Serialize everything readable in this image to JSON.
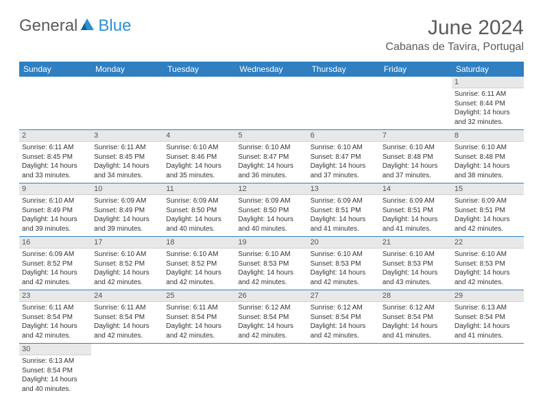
{
  "brand": {
    "part1": "General",
    "part2": "Blue"
  },
  "title": "June 2024",
  "location": "Cabanas de Tavira, Portugal",
  "colors": {
    "header_bg": "#2f7fc1",
    "header_text": "#ffffff",
    "daynum_bg": "#e8e8e8",
    "daynum_text": "#555555",
    "body_text": "#333333",
    "title_text": "#5a5a5a",
    "brand_blue": "#2a8fd6",
    "week_sep": "#2f7fc1"
  },
  "typography": {
    "title_fontsize": 30,
    "location_fontsize": 16,
    "header_fontsize": 12,
    "daynum_fontsize": 11,
    "cell_fontsize": 10
  },
  "weekdays": [
    "Sunday",
    "Monday",
    "Tuesday",
    "Wednesday",
    "Thursday",
    "Friday",
    "Saturday"
  ],
  "weeks": [
    [
      null,
      null,
      null,
      null,
      null,
      null,
      {
        "n": "1",
        "sr": "Sunrise: 6:11 AM",
        "ss": "Sunset: 8:44 PM",
        "dl1": "Daylight: 14 hours",
        "dl2": "and 32 minutes."
      }
    ],
    [
      {
        "n": "2",
        "sr": "Sunrise: 6:11 AM",
        "ss": "Sunset: 8:45 PM",
        "dl1": "Daylight: 14 hours",
        "dl2": "and 33 minutes."
      },
      {
        "n": "3",
        "sr": "Sunrise: 6:11 AM",
        "ss": "Sunset: 8:45 PM",
        "dl1": "Daylight: 14 hours",
        "dl2": "and 34 minutes."
      },
      {
        "n": "4",
        "sr": "Sunrise: 6:10 AM",
        "ss": "Sunset: 8:46 PM",
        "dl1": "Daylight: 14 hours",
        "dl2": "and 35 minutes."
      },
      {
        "n": "5",
        "sr": "Sunrise: 6:10 AM",
        "ss": "Sunset: 8:47 PM",
        "dl1": "Daylight: 14 hours",
        "dl2": "and 36 minutes."
      },
      {
        "n": "6",
        "sr": "Sunrise: 6:10 AM",
        "ss": "Sunset: 8:47 PM",
        "dl1": "Daylight: 14 hours",
        "dl2": "and 37 minutes."
      },
      {
        "n": "7",
        "sr": "Sunrise: 6:10 AM",
        "ss": "Sunset: 8:48 PM",
        "dl1": "Daylight: 14 hours",
        "dl2": "and 37 minutes."
      },
      {
        "n": "8",
        "sr": "Sunrise: 6:10 AM",
        "ss": "Sunset: 8:48 PM",
        "dl1": "Daylight: 14 hours",
        "dl2": "and 38 minutes."
      }
    ],
    [
      {
        "n": "9",
        "sr": "Sunrise: 6:10 AM",
        "ss": "Sunset: 8:49 PM",
        "dl1": "Daylight: 14 hours",
        "dl2": "and 39 minutes."
      },
      {
        "n": "10",
        "sr": "Sunrise: 6:09 AM",
        "ss": "Sunset: 8:49 PM",
        "dl1": "Daylight: 14 hours",
        "dl2": "and 39 minutes."
      },
      {
        "n": "11",
        "sr": "Sunrise: 6:09 AM",
        "ss": "Sunset: 8:50 PM",
        "dl1": "Daylight: 14 hours",
        "dl2": "and 40 minutes."
      },
      {
        "n": "12",
        "sr": "Sunrise: 6:09 AM",
        "ss": "Sunset: 8:50 PM",
        "dl1": "Daylight: 14 hours",
        "dl2": "and 40 minutes."
      },
      {
        "n": "13",
        "sr": "Sunrise: 6:09 AM",
        "ss": "Sunset: 8:51 PM",
        "dl1": "Daylight: 14 hours",
        "dl2": "and 41 minutes."
      },
      {
        "n": "14",
        "sr": "Sunrise: 6:09 AM",
        "ss": "Sunset: 8:51 PM",
        "dl1": "Daylight: 14 hours",
        "dl2": "and 41 minutes."
      },
      {
        "n": "15",
        "sr": "Sunrise: 6:09 AM",
        "ss": "Sunset: 8:51 PM",
        "dl1": "Daylight: 14 hours",
        "dl2": "and 42 minutes."
      }
    ],
    [
      {
        "n": "16",
        "sr": "Sunrise: 6:09 AM",
        "ss": "Sunset: 8:52 PM",
        "dl1": "Daylight: 14 hours",
        "dl2": "and 42 minutes."
      },
      {
        "n": "17",
        "sr": "Sunrise: 6:10 AM",
        "ss": "Sunset: 8:52 PM",
        "dl1": "Daylight: 14 hours",
        "dl2": "and 42 minutes."
      },
      {
        "n": "18",
        "sr": "Sunrise: 6:10 AM",
        "ss": "Sunset: 8:52 PM",
        "dl1": "Daylight: 14 hours",
        "dl2": "and 42 minutes."
      },
      {
        "n": "19",
        "sr": "Sunrise: 6:10 AM",
        "ss": "Sunset: 8:53 PM",
        "dl1": "Daylight: 14 hours",
        "dl2": "and 42 minutes."
      },
      {
        "n": "20",
        "sr": "Sunrise: 6:10 AM",
        "ss": "Sunset: 8:53 PM",
        "dl1": "Daylight: 14 hours",
        "dl2": "and 42 minutes."
      },
      {
        "n": "21",
        "sr": "Sunrise: 6:10 AM",
        "ss": "Sunset: 8:53 PM",
        "dl1": "Daylight: 14 hours",
        "dl2": "and 43 minutes."
      },
      {
        "n": "22",
        "sr": "Sunrise: 6:10 AM",
        "ss": "Sunset: 8:53 PM",
        "dl1": "Daylight: 14 hours",
        "dl2": "and 42 minutes."
      }
    ],
    [
      {
        "n": "23",
        "sr": "Sunrise: 6:11 AM",
        "ss": "Sunset: 8:54 PM",
        "dl1": "Daylight: 14 hours",
        "dl2": "and 42 minutes."
      },
      {
        "n": "24",
        "sr": "Sunrise: 6:11 AM",
        "ss": "Sunset: 8:54 PM",
        "dl1": "Daylight: 14 hours",
        "dl2": "and 42 minutes."
      },
      {
        "n": "25",
        "sr": "Sunrise: 6:11 AM",
        "ss": "Sunset: 8:54 PM",
        "dl1": "Daylight: 14 hours",
        "dl2": "and 42 minutes."
      },
      {
        "n": "26",
        "sr": "Sunrise: 6:12 AM",
        "ss": "Sunset: 8:54 PM",
        "dl1": "Daylight: 14 hours",
        "dl2": "and 42 minutes."
      },
      {
        "n": "27",
        "sr": "Sunrise: 6:12 AM",
        "ss": "Sunset: 8:54 PM",
        "dl1": "Daylight: 14 hours",
        "dl2": "and 42 minutes."
      },
      {
        "n": "28",
        "sr": "Sunrise: 6:12 AM",
        "ss": "Sunset: 8:54 PM",
        "dl1": "Daylight: 14 hours",
        "dl2": "and 41 minutes."
      },
      {
        "n": "29",
        "sr": "Sunrise: 6:13 AM",
        "ss": "Sunset: 8:54 PM",
        "dl1": "Daylight: 14 hours",
        "dl2": "and 41 minutes."
      }
    ],
    [
      {
        "n": "30",
        "sr": "Sunrise: 6:13 AM",
        "ss": "Sunset: 8:54 PM",
        "dl1": "Daylight: 14 hours",
        "dl2": "and 40 minutes."
      },
      null,
      null,
      null,
      null,
      null,
      null
    ]
  ]
}
